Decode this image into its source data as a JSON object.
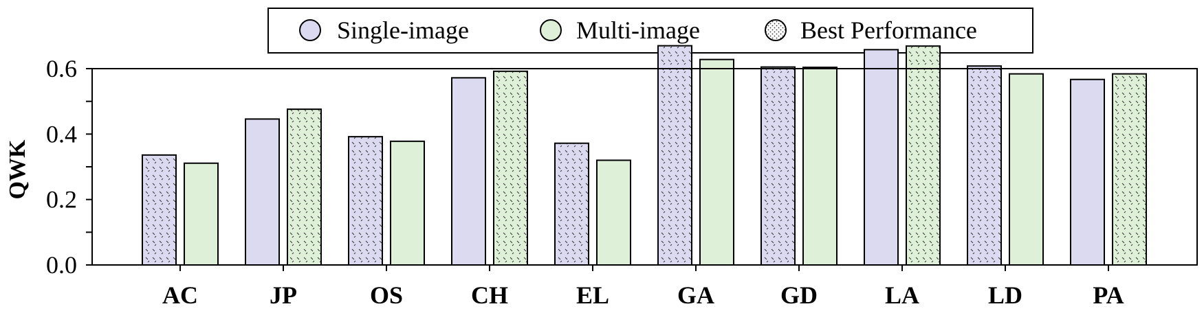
{
  "chart_data": {
    "type": "bar",
    "ylabel": "QWK",
    "ylim": [
      0,
      0.6
    ],
    "yticks": [
      "0.0",
      "0.2",
      "0.4",
      "0.6"
    ],
    "categories": [
      "AC",
      "JP",
      "OS",
      "CH",
      "EL",
      "GA",
      "GD",
      "LA",
      "LD",
      "PA"
    ],
    "series": [
      {
        "name": "Single-image",
        "color": "#dcdaf0",
        "values": [
          0.336,
          0.446,
          0.392,
          0.572,
          0.372,
          0.67,
          0.605,
          0.658,
          0.608,
          0.567
        ]
      },
      {
        "name": "Multi-image",
        "color": "#dff0d8",
        "values": [
          0.311,
          0.476,
          0.378,
          0.592,
          0.32,
          0.628,
          0.604,
          0.669,
          0.584,
          0.584
        ]
      }
    ],
    "best": [
      0,
      1,
      0,
      1,
      0,
      0,
      0,
      1,
      0,
      1
    ],
    "legend": {
      "position": "top-center",
      "items": [
        {
          "label": "Single-image",
          "icon": "circle-lavender"
        },
        {
          "label": "Multi-image",
          "icon": "circle-green"
        },
        {
          "label": "Best Performance",
          "icon": "circle-dotted"
        }
      ]
    },
    "grid": false
  }
}
